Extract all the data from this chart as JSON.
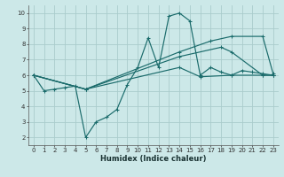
{
  "background_color": "#cce8e8",
  "grid_color": "#aacccc",
  "line_color": "#1a6b6b",
  "xlabel": "Humidex (Indice chaleur)",
  "xlim": [
    -0.5,
    23.5
  ],
  "ylim": [
    1.5,
    10.5
  ],
  "xticks": [
    0,
    1,
    2,
    3,
    4,
    5,
    6,
    7,
    8,
    9,
    10,
    11,
    12,
    13,
    14,
    15,
    16,
    17,
    18,
    19,
    20,
    21,
    22,
    23
  ],
  "yticks": [
    2,
    3,
    4,
    5,
    6,
    7,
    8,
    9,
    10
  ],
  "series": [
    {
      "x": [
        0,
        1,
        2,
        3,
        4,
        5,
        6,
        7,
        8,
        9,
        10,
        11,
        12,
        13,
        14,
        15,
        16,
        17,
        18,
        19,
        20,
        21,
        22,
        23
      ],
      "y": [
        6.0,
        5.0,
        5.1,
        5.2,
        5.3,
        2.0,
        3.0,
        3.3,
        3.8,
        5.4,
        6.5,
        8.4,
        6.5,
        9.8,
        10.0,
        9.5,
        6.0,
        6.5,
        6.2,
        6.0,
        6.3,
        6.2,
        6.1,
        6.0
      ]
    },
    {
      "x": [
        0,
        5,
        14,
        17,
        19,
        22,
        23
      ],
      "y": [
        6.0,
        5.1,
        7.5,
        8.2,
        8.5,
        8.5,
        6.1
      ]
    },
    {
      "x": [
        0,
        5,
        14,
        18,
        19,
        22,
        23
      ],
      "y": [
        6.0,
        5.1,
        7.2,
        7.8,
        7.5,
        6.0,
        6.0
      ]
    },
    {
      "x": [
        0,
        5,
        14,
        16,
        19,
        22,
        23
      ],
      "y": [
        6.0,
        5.1,
        6.5,
        5.9,
        6.0,
        6.0,
        6.0
      ]
    }
  ]
}
